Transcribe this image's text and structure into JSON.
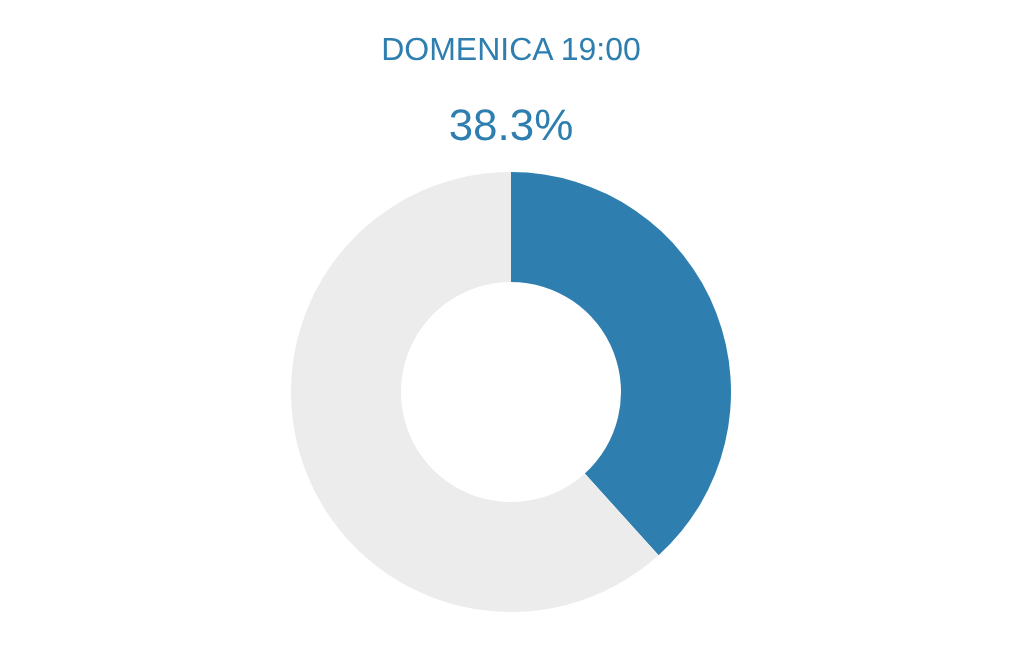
{
  "chart_data": {
    "type": "donut",
    "title": "DOMENICA  19:00",
    "subtitle": "38.3%",
    "categories": [
      null,
      null
    ],
    "values": [
      38.3,
      61.7
    ],
    "colors": [
      "#2e7fb0",
      "#ececec"
    ]
  }
}
